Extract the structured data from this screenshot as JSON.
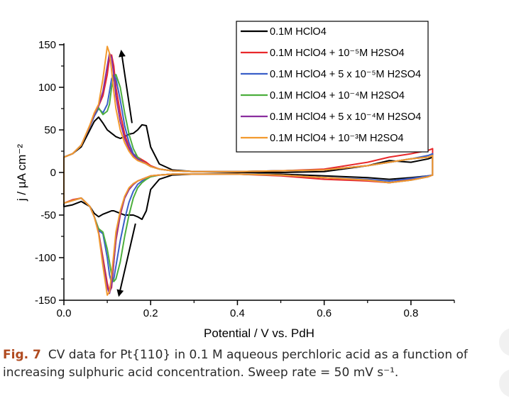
{
  "chart_data": {
    "type": "line",
    "xlabel": "Potential / V vs. PdH",
    "ylabel": "j / µA cm⁻²",
    "xlim": [
      0.0,
      0.9
    ],
    "ylim": [
      -150,
      150
    ],
    "xticks": [
      "0.0",
      "0.2",
      "0.4",
      "0.6",
      "0.8"
    ],
    "yticks": [
      "150",
      "100",
      "50",
      "0",
      "-50",
      "-100",
      "-150"
    ],
    "grid": false,
    "legend_position": "top-right",
    "x": [
      0.0,
      0.02,
      0.04,
      0.06,
      0.07,
      0.08,
      0.09,
      0.1,
      0.105,
      0.11,
      0.115,
      0.12,
      0.13,
      0.14,
      0.15,
      0.16,
      0.17,
      0.18,
      0.19,
      0.2,
      0.22,
      0.25,
      0.3,
      0.4,
      0.5,
      0.6,
      0.7,
      0.75,
      0.8,
      0.84,
      0.85
    ],
    "series": [
      {
        "name": "0.1M HClO4",
        "color": "#000000",
        "anodic": [
          18,
          22,
          30,
          50,
          60,
          65,
          58,
          50,
          48,
          46,
          44,
          42,
          40,
          42,
          45,
          46,
          50,
          56,
          55,
          30,
          10,
          3,
          1,
          0,
          0,
          1,
          8,
          14,
          12,
          16,
          18
        ],
        "cathodic": [
          -40,
          -38,
          -34,
          -40,
          -48,
          -52,
          -49,
          -47,
          -46,
          -45,
          -45,
          -46,
          -48,
          -50,
          -50,
          -50,
          -52,
          -55,
          -45,
          -20,
          -8,
          -3,
          -2,
          -2,
          -2,
          -4,
          -6,
          -8,
          -6,
          -4,
          -3
        ]
      },
      {
        "name": "0.1M HClO4 + 10⁻⁵M H2SO4",
        "color": "#e8282b",
        "anodic": [
          18,
          22,
          32,
          55,
          68,
          78,
          90,
          115,
          135,
          138,
          125,
          100,
          70,
          45,
          30,
          22,
          18,
          15,
          12,
          8,
          4,
          2,
          1,
          1,
          2,
          4,
          12,
          18,
          22,
          26,
          28
        ],
        "cathodic": [
          -36,
          -32,
          -30,
          -40,
          -52,
          -70,
          -100,
          -130,
          -140,
          -135,
          -105,
          -80,
          -50,
          -30,
          -20,
          -14,
          -10,
          -8,
          -6,
          -4,
          -3,
          -2,
          -2,
          -2,
          -4,
          -8,
          -10,
          -12,
          -8,
          -4,
          -3
        ]
      },
      {
        "name": "0.1M HClO4 + 5 x 10⁻⁵M H2SO4",
        "color": "#3a5fc8",
        "anodic": [
          18,
          22,
          32,
          54,
          66,
          75,
          70,
          80,
          95,
          110,
          115,
          110,
          85,
          55,
          35,
          22,
          16,
          12,
          10,
          7,
          4,
          2,
          1,
          1,
          2,
          3,
          8,
          12,
          16,
          20,
          22
        ],
        "cathodic": [
          -36,
          -33,
          -30,
          -40,
          -52,
          -68,
          -72,
          -100,
          -120,
          -130,
          -125,
          -110,
          -80,
          -55,
          -35,
          -22,
          -14,
          -10,
          -7,
          -5,
          -3,
          -2,
          -2,
          -2,
          -3,
          -6,
          -8,
          -10,
          -7,
          -4,
          -3
        ]
      },
      {
        "name": "0.1M HClO4 + 10⁻⁴M H2SO4",
        "color": "#4cae3d",
        "anodic": [
          18,
          22,
          32,
          55,
          68,
          76,
          68,
          72,
          80,
          100,
          112,
          115,
          100,
          70,
          45,
          28,
          18,
          13,
          10,
          7,
          4,
          2,
          1,
          1,
          2,
          3,
          8,
          12,
          16,
          18,
          20
        ],
        "cathodic": [
          -36,
          -33,
          -30,
          -40,
          -52,
          -66,
          -70,
          -90,
          -105,
          -120,
          -128,
          -125,
          -105,
          -75,
          -50,
          -30,
          -18,
          -12,
          -8,
          -5,
          -3,
          -2,
          -2,
          -2,
          -3,
          -6,
          -9,
          -12,
          -9,
          -5,
          -3
        ]
      },
      {
        "name": "0.1M HClO4 + 5 x 10⁻⁴M H2SO4",
        "color": "#8a2e9e",
        "anodic": [
          18,
          22,
          32,
          55,
          68,
          78,
          95,
          125,
          140,
          135,
          115,
          90,
          60,
          40,
          28,
          20,
          16,
          13,
          10,
          7,
          4,
          2,
          1,
          1,
          2,
          3,
          8,
          12,
          16,
          18,
          20
        ],
        "cathodic": [
          -36,
          -33,
          -30,
          -40,
          -52,
          -70,
          -105,
          -135,
          -142,
          -132,
          -105,
          -78,
          -48,
          -30,
          -20,
          -14,
          -10,
          -8,
          -6,
          -4,
          -3,
          -2,
          -2,
          -2,
          -3,
          -6,
          -9,
          -12,
          -9,
          -5,
          -3
        ]
      },
      {
        "name": "0.1M HClO4 + 10⁻³M H2SO4",
        "color": "#f29a2e",
        "anodic": [
          18,
          22,
          32,
          56,
          70,
          80,
          110,
          148,
          140,
          120,
          95,
          75,
          50,
          35,
          25,
          18,
          14,
          12,
          10,
          7,
          4,
          2,
          1,
          1,
          2,
          3,
          8,
          12,
          16,
          18,
          20
        ],
        "cathodic": [
          -36,
          -33,
          -30,
          -40,
          -52,
          -72,
          -110,
          -144,
          -140,
          -120,
          -95,
          -70,
          -45,
          -28,
          -18,
          -13,
          -10,
          -8,
          -6,
          -4,
          -3,
          -2,
          -2,
          -2,
          -3,
          -6,
          -9,
          -12,
          -9,
          -5,
          -3
        ]
      }
    ]
  },
  "caption": {
    "label": "Fig. 7",
    "text": "CV data for Pt{110} in 0.1 M aqueous perchloric acid as a function of increasing sulphuric acid concentration. Sweep rate = 50 mV s⁻¹."
  }
}
